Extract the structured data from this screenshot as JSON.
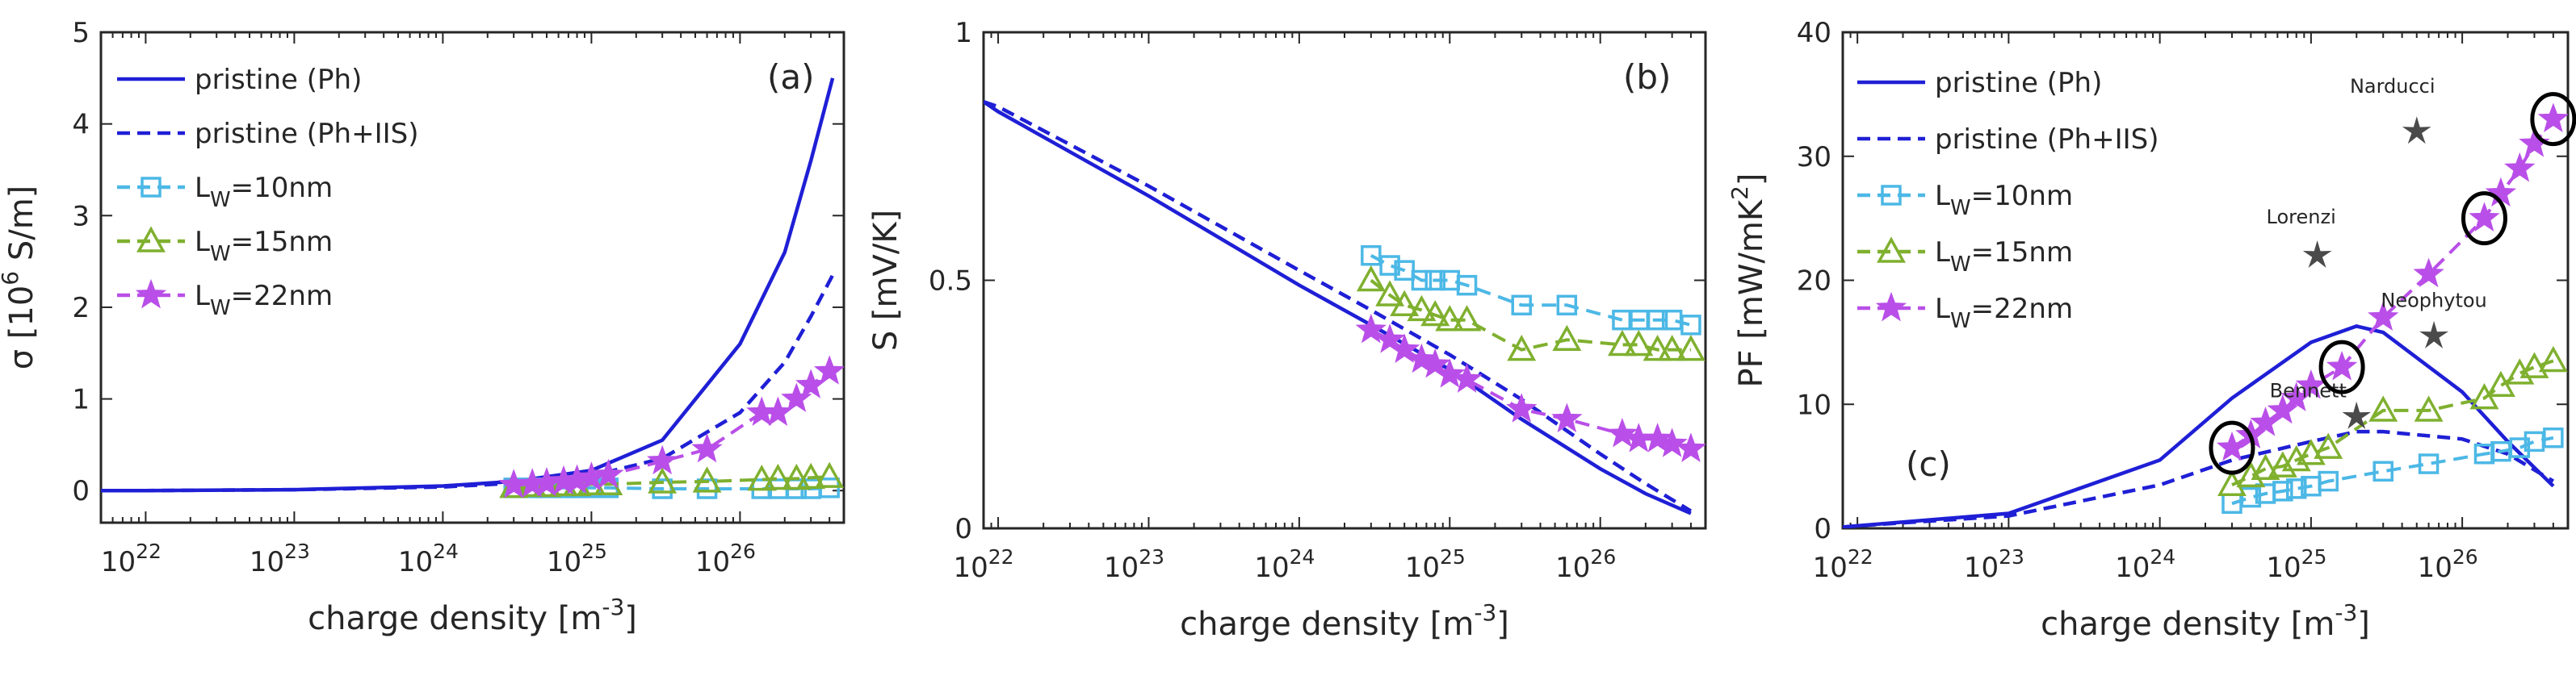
{
  "chart_data": [
    {
      "type": "line",
      "panel_label": "(a)",
      "xlabel": "charge density [m^-3]",
      "ylabel": "σ [10^6 S/m]",
      "x_scale": "log",
      "xlim": [
        5e+21,
        5e+26
      ],
      "ylim": [
        -0.35,
        5
      ],
      "x_ticks": [
        1e+22,
        1e+23,
        1e+24,
        1e+25,
        1e+26
      ],
      "y_ticks": [
        0,
        1,
        2,
        3,
        4,
        5
      ],
      "y_tick_labels": [
        "0",
        "1",
        "2",
        "3",
        "4",
        "5"
      ],
      "legend_position": "top-left",
      "series": [
        {
          "name": "pristine (Ph)",
          "color": "#1f1fd6",
          "style": "solid",
          "marker": "none",
          "x": [
            5e+21,
            1e+22,
            1e+23,
            1e+24,
            3e+24,
            1e+25,
            3e+25,
            1e+26,
            2e+26,
            3e+26,
            4.2e+26
          ],
          "y": [
            0,
            0,
            0.01,
            0.05,
            0.1,
            0.22,
            0.55,
            1.6,
            2.6,
            3.6,
            4.5
          ]
        },
        {
          "name": "pristine (Ph+IIS)",
          "color": "#1f1fd6",
          "style": "dashed",
          "marker": "none",
          "x": [
            5e+21,
            1e+22,
            1e+23,
            1e+24,
            3e+24,
            1e+25,
            3e+25,
            1e+26,
            2e+26,
            3e+26,
            4.2e+26
          ],
          "y": [
            0,
            0,
            0.01,
            0.04,
            0.08,
            0.16,
            0.35,
            0.85,
            1.4,
            1.9,
            2.35
          ]
        },
        {
          "name": "L_W=10nm",
          "color": "#4cb8e6",
          "style": "dashed",
          "marker": "square",
          "x": [
            3e+24,
            4e+24,
            5e+24,
            6.5e+24,
            8e+24,
            1e+25,
            1.3e+25,
            3e+25,
            6e+25,
            1.4e+26,
            1.8e+26,
            2.4e+26,
            3e+26,
            4e+26
          ],
          "y": [
            0.03,
            0.03,
            0.03,
            0.03,
            0.03,
            0.03,
            0.03,
            0.02,
            0.02,
            0.02,
            0.02,
            0.02,
            0.02,
            0.03
          ]
        },
        {
          "name": "L_W=15nm",
          "color": "#7fb02f",
          "style": "dashed",
          "marker": "triangle",
          "x": [
            3e+24,
            4e+24,
            5e+24,
            6.5e+24,
            8e+24,
            1e+25,
            1.3e+25,
            3e+25,
            6e+25,
            1.4e+26,
            1.8e+26,
            2.4e+26,
            3e+26,
            4e+26
          ],
          "y": [
            0.04,
            0.05,
            0.05,
            0.06,
            0.06,
            0.07,
            0.07,
            0.09,
            0.1,
            0.12,
            0.13,
            0.13,
            0.14,
            0.15
          ]
        },
        {
          "name": "L_W=22nm",
          "color": "#b94fe8",
          "style": "dashed",
          "marker": "star",
          "x": [
            3e+24,
            4e+24,
            5e+24,
            6.5e+24,
            8e+24,
            1e+25,
            1.3e+25,
            3e+25,
            6e+25,
            1.4e+26,
            1.8e+26,
            2.4e+26,
            3e+26,
            4e+26
          ],
          "y": [
            0.06,
            0.07,
            0.08,
            0.1,
            0.11,
            0.14,
            0.17,
            0.32,
            0.45,
            0.85,
            0.85,
            1.0,
            1.15,
            1.3
          ]
        }
      ]
    },
    {
      "type": "line",
      "panel_label": "(b)",
      "xlabel": "charge density [m^-3]",
      "ylabel": "S [mV/K]",
      "x_scale": "log",
      "xlim": [
        8e+21,
        5e+26
      ],
      "ylim": [
        0,
        1
      ],
      "x_ticks": [
        1e+22,
        1e+23,
        1e+24,
        1e+25,
        1e+26
      ],
      "y_ticks": [
        0,
        0.5,
        1
      ],
      "y_tick_labels": [
        "0",
        "0.5",
        "1"
      ],
      "series": [
        {
          "name": "pristine (Ph)",
          "color": "#1f1fd6",
          "style": "solid",
          "marker": "none",
          "x": [
            8e+21,
            1e+22,
            1e+23,
            1e+24,
            3e+24,
            1e+25,
            3e+25,
            1e+26,
            2e+26,
            4e+26
          ],
          "y": [
            0.86,
            0.84,
            0.67,
            0.49,
            0.41,
            0.32,
            0.22,
            0.12,
            0.07,
            0.03
          ]
        },
        {
          "name": "pristine (Ph+IIS)",
          "color": "#1f1fd6",
          "style": "dashed",
          "marker": "none",
          "x": [
            8e+21,
            1e+22,
            1e+23,
            1e+24,
            3e+24,
            1e+25,
            3e+25,
            1e+26,
            2e+26,
            4e+26
          ],
          "y": [
            0.86,
            0.85,
            0.69,
            0.52,
            0.44,
            0.35,
            0.26,
            0.15,
            0.09,
            0.035
          ]
        },
        {
          "name": "L_W=10nm",
          "color": "#4cb8e6",
          "style": "dashed",
          "marker": "square",
          "x": [
            3e+24,
            4e+24,
            5e+24,
            6.5e+24,
            8e+24,
            1e+25,
            1.3e+25,
            3e+25,
            6e+25,
            1.4e+26,
            1.8e+26,
            2.4e+26,
            3e+26,
            4e+26
          ],
          "y": [
            0.55,
            0.53,
            0.52,
            0.5,
            0.5,
            0.5,
            0.49,
            0.45,
            0.45,
            0.42,
            0.42,
            0.42,
            0.42,
            0.41
          ]
        },
        {
          "name": "L_W=15nm",
          "color": "#7fb02f",
          "style": "dashed",
          "marker": "triangle",
          "x": [
            3e+24,
            4e+24,
            5e+24,
            6.5e+24,
            8e+24,
            1e+25,
            1.3e+25,
            3e+25,
            6e+25,
            1.4e+26,
            1.8e+26,
            2.4e+26,
            3e+26,
            4e+26
          ],
          "y": [
            0.5,
            0.47,
            0.45,
            0.44,
            0.43,
            0.42,
            0.42,
            0.36,
            0.38,
            0.37,
            0.37,
            0.36,
            0.36,
            0.36
          ]
        },
        {
          "name": "L_W=22nm",
          "color": "#b94fe8",
          "style": "dashed",
          "marker": "star",
          "x": [
            3e+24,
            4e+24,
            5e+24,
            6.5e+24,
            8e+24,
            1e+25,
            1.3e+25,
            3e+25,
            6e+25,
            1.4e+26,
            1.8e+26,
            2.4e+26,
            3e+26,
            4e+26
          ],
          "y": [
            0.4,
            0.38,
            0.36,
            0.34,
            0.33,
            0.31,
            0.3,
            0.24,
            0.22,
            0.19,
            0.18,
            0.18,
            0.17,
            0.16
          ]
        }
      ]
    },
    {
      "type": "line",
      "panel_label": "(c)",
      "xlabel": "charge density [m^-3]",
      "ylabel": "PF [mW/mK^2]",
      "x_scale": "log",
      "xlim": [
        8e+21,
        5e+26
      ],
      "ylim": [
        0,
        40
      ],
      "x_ticks": [
        1e+22,
        1e+23,
        1e+24,
        1e+25,
        1e+26
      ],
      "y_ticks": [
        0,
        10,
        20,
        30,
        40
      ],
      "y_tick_labels": [
        "0",
        "10",
        "20",
        "30",
        "40"
      ],
      "legend_position": "top-left",
      "series": [
        {
          "name": "pristine (Ph)",
          "color": "#1f1fd6",
          "style": "solid",
          "marker": "none",
          "x": [
            8e+21,
            1e+22,
            1e+23,
            1e+24,
            3e+24,
            1e+25,
            2e+25,
            3e+25,
            1e+26,
            2e+26,
            4e+26
          ],
          "y": [
            0.1,
            0.2,
            1.2,
            5.5,
            10.5,
            15.0,
            16.3,
            15.8,
            11.0,
            7.0,
            3.4
          ]
        },
        {
          "name": "pristine (Ph+IIS)",
          "color": "#1f1fd6",
          "style": "dashed",
          "marker": "none",
          "x": [
            8e+21,
            1e+22,
            1e+23,
            1e+24,
            3e+24,
            1e+25,
            2e+25,
            3e+25,
            1e+26,
            2e+26,
            4e+26
          ],
          "y": [
            0.1,
            0.2,
            1.0,
            3.5,
            5.5,
            7.0,
            7.8,
            7.8,
            7.2,
            6.0,
            3.8
          ]
        },
        {
          "name": "L_W=10nm",
          "color": "#4cb8e6",
          "style": "dashed",
          "marker": "square",
          "x": [
            3e+24,
            4e+24,
            5e+24,
            6.5e+24,
            8e+24,
            1e+25,
            1.3e+25,
            3e+25,
            6e+25,
            1.4e+26,
            1.8e+26,
            2.4e+26,
            3e+26,
            4e+26
          ],
          "y": [
            2.0,
            2.5,
            2.8,
            3.0,
            3.2,
            3.4,
            3.8,
            4.6,
            5.2,
            6.0,
            6.2,
            6.5,
            7.0,
            7.3
          ]
        },
        {
          "name": "L_W=15nm",
          "color": "#7fb02f",
          "style": "dashed",
          "marker": "triangle",
          "x": [
            3e+24,
            4e+24,
            5e+24,
            6.5e+24,
            8e+24,
            1e+25,
            1.3e+25,
            3e+25,
            6e+25,
            1.4e+26,
            1.8e+26,
            2.4e+26,
            3e+26,
            4e+26
          ],
          "y": [
            3.5,
            4.2,
            4.8,
            5.0,
            5.5,
            6.0,
            6.5,
            9.5,
            9.5,
            10.5,
            11.5,
            12.5,
            13.0,
            13.5
          ]
        },
        {
          "name": "L_W=22nm",
          "color": "#b94fe8",
          "style": "dashed",
          "marker": "star",
          "x": [
            3e+24,
            4e+24,
            5e+24,
            6.5e+24,
            8e+24,
            1e+25,
            1.6e+25,
            3e+25,
            6e+25,
            1.4e+26,
            1.8e+26,
            2.4e+26,
            3e+26,
            4e+26
          ],
          "y": [
            6.5,
            7.5,
            8.5,
            9.5,
            10.5,
            11.5,
            13.0,
            17.0,
            20.5,
            25.0,
            27.0,
            29.0,
            31.0,
            33.0
          ]
        }
      ],
      "reference_points": [
        {
          "name": "Narducci",
          "x": 5e+25,
          "y": 32
        },
        {
          "name": "Lorenzi",
          "x": 1.1e+25,
          "y": 22
        },
        {
          "name": "Neophytou",
          "x": 6.5e+25,
          "y": 15.5
        },
        {
          "name": "Bennett",
          "x": 2e+25,
          "y": 9
        }
      ],
      "circled_points": [
        {
          "x": 3e+24,
          "y": 6.5
        },
        {
          "x": 1.6e+25,
          "y": 13.0
        },
        {
          "x": 1.4e+26,
          "y": 25.0
        },
        {
          "x": 4e+26,
          "y": 33.0
        }
      ]
    }
  ],
  "legend_entries": [
    {
      "text": "pristine (Ph)",
      "base": "pristine (Ph)",
      "sub": ""
    },
    {
      "text": "pristine (Ph+IIS)",
      "base": "pristine (Ph+IIS)",
      "sub": ""
    },
    {
      "text": "L_W=10nm",
      "base": "L",
      "sub": "W",
      "rest": "=10nm"
    },
    {
      "text": "L_W=15nm",
      "base": "L",
      "sub": "W",
      "rest": "=15nm"
    },
    {
      "text": "L_W=22nm",
      "base": "L",
      "sub": "W",
      "rest": "=22nm"
    }
  ]
}
